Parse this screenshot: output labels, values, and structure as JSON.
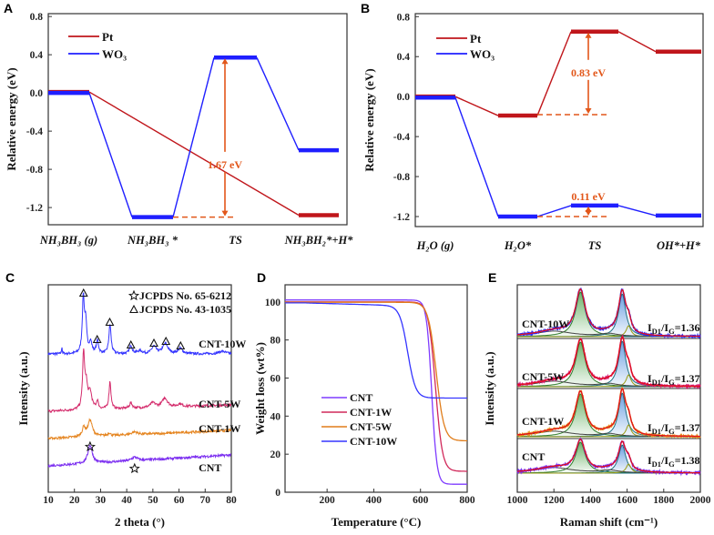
{
  "panel_labels": [
    "A",
    "B",
    "C",
    "D",
    "E"
  ],
  "chart_data": [
    {
      "panel": "A",
      "type": "line",
      "subtype": "energy-profile",
      "ylabel": "Relative energy (eV)",
      "ylim": [
        -1.38,
        0.83
      ],
      "yticks": [
        0.8,
        0.4,
        0.0,
        -0.4,
        -0.8,
        -1.2
      ],
      "ytick_labels": [
        "0.8",
        "0.4",
        "0.0",
        "-0.4",
        "-0.8",
        "-1.2"
      ],
      "categories": [
        "NH₃BH₃ (g)",
        "NH₃BH₃ *",
        "TS",
        "NH₃BH₂*+H*"
      ],
      "legend": "top-left",
      "series": [
        {
          "name": "Pt",
          "color": "#c0161b",
          "levels": [
            0.01,
            null,
            null,
            -1.28
          ]
        },
        {
          "name": "WO₃",
          "color": "#1f1fff",
          "levels": [
            0.0,
            -1.3,
            0.37,
            -0.6
          ]
        }
      ],
      "annotations": [
        {
          "text": "1.67 eV",
          "from": -1.3,
          "to": 0.37,
          "color": "#e2571a"
        }
      ]
    },
    {
      "panel": "B",
      "type": "line",
      "subtype": "energy-profile",
      "ylabel": "Relative energy (eV)",
      "ylim": [
        -1.3,
        0.83
      ],
      "yticks": [
        0.8,
        0.4,
        0.0,
        -0.4,
        -0.8,
        -1.2
      ],
      "ytick_labels": [
        "0.8",
        "0.4",
        "0.0",
        "-0.4",
        "-0.8",
        "-1.2"
      ],
      "categories": [
        "H₂O (g)",
        "H₂O*",
        "TS",
        "OH*+H*"
      ],
      "legend": "top-left",
      "series": [
        {
          "name": "Pt",
          "color": "#c0161b",
          "levels": [
            0.0,
            -0.19,
            0.65,
            0.45
          ]
        },
        {
          "name": "WO₃",
          "color": "#1f1fff",
          "levels": [
            -0.01,
            -1.2,
            -1.09,
            -1.19
          ]
        }
      ],
      "annotations": [
        {
          "text": "0.83 eV",
          "from": -0.18,
          "to": 0.65,
          "color": "#e2571a"
        },
        {
          "text": "0.11 eV",
          "from": -1.2,
          "to": -1.09,
          "color": "#e2571a"
        }
      ]
    },
    {
      "panel": "C",
      "type": "line",
      "subtype": "xrd",
      "xlabel": "2 theta (°)",
      "ylabel": "Intensity (a.u.)",
      "xlim": [
        10,
        80
      ],
      "xticks": [
        10,
        20,
        30,
        40,
        50,
        60,
        70,
        80
      ],
      "xtick_labels": [
        "10",
        "20",
        "30",
        "40",
        "50",
        "60",
        "70",
        "80"
      ],
      "legend_entries": [
        {
          "symbol": "star",
          "text": "JCPDS No. 65-6212"
        },
        {
          "symbol": "triangle",
          "text": "JCPDS No. 43-1035"
        }
      ],
      "triangle_markers_2theta": [
        23.5,
        28.7,
        33.5,
        41.6,
        50.4,
        55.0,
        60.6
      ],
      "star_markers_2theta": [
        26.0,
        43.0
      ],
      "series": [
        {
          "name": "CNT-10W",
          "color": "#3535ff",
          "baseline": [
            0,
            0
          ],
          "peaks": [
            [
              15.2,
              8,
              0.15
            ],
            [
              23.4,
              60,
              0.45
            ],
            [
              24.3,
              32,
              0.5
            ],
            [
              26.2,
              12,
              0.6
            ],
            [
              28.8,
              14,
              0.5
            ],
            [
              33.6,
              32,
              0.5
            ],
            [
              41.6,
              9,
              0.6
            ],
            [
              45,
              3,
              1.2
            ],
            [
              50.4,
              8,
              1.0
            ],
            [
              54.8,
              11,
              1.2
            ],
            [
              60.5,
              6,
              1.0
            ],
            [
              76.5,
              3,
              1.5
            ]
          ]
        },
        {
          "name": "CNT-5W",
          "color": "#d42c6c",
          "baseline": [
            0,
            -7
          ],
          "peaks": [
            [
              23.5,
              60,
              0.45
            ],
            [
              24.5,
              25,
              0.6
            ],
            [
              26.0,
              18,
              0.8
            ],
            [
              28.8,
              9,
              0.4
            ],
            [
              33.6,
              30,
              0.45
            ],
            [
              41.6,
              6,
              0.6
            ],
            [
              50,
              5,
              1.2
            ],
            [
              54.6,
              10,
              1.2
            ],
            [
              60.3,
              3,
              1.0
            ]
          ]
        },
        {
          "name": "CNT-1W",
          "color": "#e58520",
          "baseline": [
            0,
            -9
          ],
          "peaks": [
            [
              23.6,
              10,
              0.7
            ],
            [
              26.0,
              18,
              1.0
            ],
            [
              33.3,
              3,
              0.6
            ],
            [
              43,
              3,
              1.5
            ]
          ]
        },
        {
          "name": "CNT",
          "color": "#7a2cf0",
          "baseline": [
            0,
            -12
          ],
          "peaks": [
            [
              26.0,
              20,
              1.0
            ],
            [
              43.0,
              4,
              1.3
            ]
          ]
        }
      ]
    },
    {
      "panel": "D",
      "type": "line",
      "subtype": "tga",
      "xlabel": "Temperature (°C)",
      "ylabel": "Weight loss (wt%)",
      "xlim": [
        20,
        800
      ],
      "ylim": [
        0,
        109
      ],
      "xticks": [
        200,
        400,
        600,
        800
      ],
      "xtick_labels": [
        "200",
        "400",
        "600",
        "800"
      ],
      "yticks": [
        0,
        20,
        40,
        60,
        80,
        100
      ],
      "ytick_labels": [
        "0",
        "20",
        "40",
        "60",
        "80",
        "100"
      ],
      "legend": "center-left",
      "series": [
        {
          "name": "CNT",
          "color": "#7f3cff",
          "start": 101.0,
          "midpoint": 648,
          "width": 11,
          "residual": 4.2
        },
        {
          "name": "CNT-1W",
          "color": "#d1285a",
          "start": 100.0,
          "midpoint": 664,
          "width": 15,
          "residual": 11
        },
        {
          "name": "CNT-5W",
          "color": "#e07d1a",
          "start": 99.8,
          "midpoint": 667,
          "width": 17,
          "residual": 27
        },
        {
          "name": "CNT-10W",
          "color": "#3535ff",
          "start": 99.5,
          "midpoint": 545,
          "width": 17,
          "residual": 49.5
        }
      ]
    },
    {
      "panel": "E",
      "type": "line",
      "subtype": "raman",
      "xlabel": "Raman shift (cm⁻¹)",
      "ylabel": "Intensity (a.u.)",
      "xlim": [
        1000,
        2000
      ],
      "xticks": [
        1000,
        1200,
        1400,
        1600,
        1800,
        2000
      ],
      "xtick_labels": [
        "1000",
        "1200",
        "1400",
        "1600",
        "1800",
        "2000"
      ],
      "ratio_parts": {
        "i": "I",
        "d1": "D1",
        "slash_i": "/I",
        "g": "G",
        "eq": "="
      },
      "fit_color": "#e0101a",
      "series": [
        {
          "name": "CNT-10W",
          "color": "#2a2aff",
          "ratio": "1.36",
          "D": 49,
          "G": 47,
          "Dprime": 12
        },
        {
          "name": "CNT-5W",
          "color": "#d81b7a",
          "ratio": "1.37",
          "D": 49,
          "G": 50,
          "Dprime": 13
        },
        {
          "name": "CNT-1W",
          "color": "#e8901e",
          "ratio": "1.37",
          "D": 47,
          "G": 48,
          "Dprime": 13
        },
        {
          "name": "CNT",
          "color": "#7a2cf0",
          "ratio": "1.38",
          "D": 34,
          "G": 31,
          "Dprime": 10
        }
      ]
    }
  ]
}
